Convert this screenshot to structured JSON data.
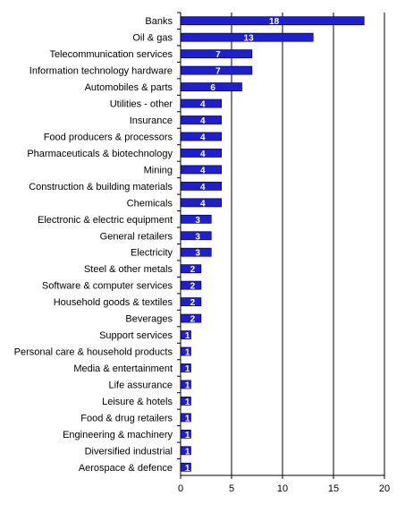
{
  "chart_data": {
    "type": "bar",
    "orientation": "horizontal",
    "categories": [
      "Banks",
      "Oil & gas",
      "Telecommunication services",
      "Information technology hardware",
      "Automobiles & parts",
      "Utilities - other",
      "Insurance",
      "Food producers & processors",
      "Pharmaceuticals & biotechnology",
      "Mining",
      "Construction & building materials",
      "Chemicals",
      "Electronic & electric equipment",
      "General retailers",
      "Electricity",
      "Steel & other metals",
      "Software & computer services",
      "Household goods & textiles",
      "Beverages",
      "Support services",
      "Personal care & household products",
      "Media & entertainment",
      "Life assurance",
      "Leisure & hotels",
      "Food & drug retailers",
      "Engineering & machinery",
      "Diversified industrial",
      "Aerospace & defence"
    ],
    "values": [
      18,
      13,
      7,
      7,
      6,
      4,
      4,
      4,
      4,
      4,
      4,
      4,
      3,
      3,
      3,
      2,
      2,
      2,
      2,
      1,
      1,
      1,
      1,
      1,
      1,
      1,
      1,
      1
    ],
    "xlim": [
      0,
      20
    ],
    "xticks": [
      0,
      5,
      10,
      15,
      20
    ],
    "grid": "vertical",
    "bar_color": "#1f1fd0",
    "bar_outline": "#000080",
    "label_color": "#ffffff"
  }
}
